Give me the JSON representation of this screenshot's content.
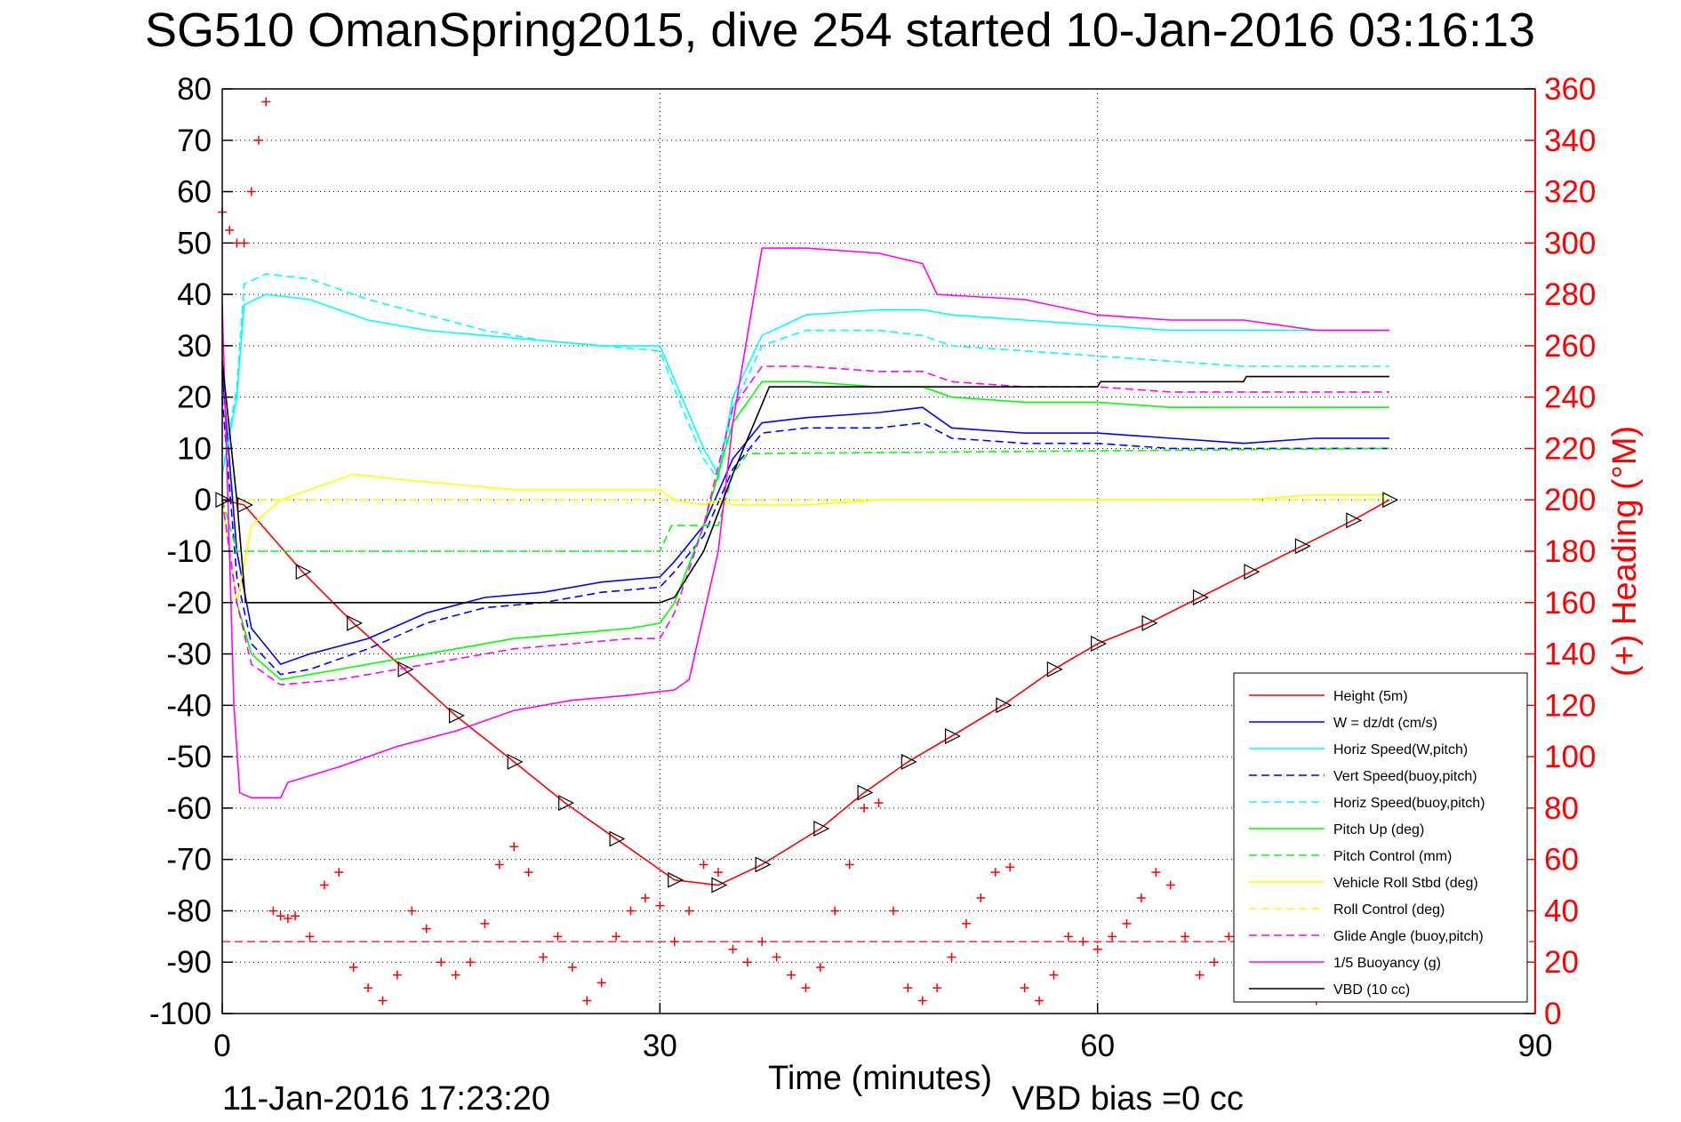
{
  "chart_data": {
    "type": "line",
    "title": "SG510 OmanSpring2015, dive 254 started 10-Jan-2016 03:16:13",
    "xlabel": "Time (minutes)",
    "ylabel_right": "(+) Heading (°M)",
    "xlim": [
      0,
      90
    ],
    "ylim": [
      -100,
      80
    ],
    "ylim_right": [
      0,
      360
    ],
    "xticks": [
      "0",
      "30",
      "60",
      "90"
    ],
    "yticks": [
      "80",
      "70",
      "60",
      "50",
      "40",
      "30",
      "20",
      "10",
      "0",
      "-10",
      "-20",
      "-30",
      "-40",
      "-50",
      "-60",
      "-70",
      "-80",
      "-90",
      "-100"
    ],
    "yticks_right": [
      "360",
      "340",
      "320",
      "300",
      "280",
      "260",
      "240",
      "220",
      "200",
      "180",
      "160",
      "140",
      "120",
      "100",
      "80",
      "60",
      "40",
      "20",
      "0"
    ],
    "grid": true,
    "legend_position": "lower-right",
    "footer_date": "11-Jan-2016 17:23:20",
    "footer_note": "VBD bias =0 cc",
    "colors": {
      "height": "#ff0000",
      "w": "#0000ff",
      "hspeed": "#00ffff",
      "pitch": "#00ff00",
      "roll": "#ffff00",
      "glide": "#ff00ff",
      "buoy": "#ff00ff",
      "vbd": "#000000",
      "heading": "#ff0000",
      "right_axis": "#ff0000"
    },
    "series": [
      {
        "name": "Height (5m)",
        "key": "height",
        "style": "solid",
        "x": [
          0,
          1.5,
          5.5,
          9,
          12.5,
          16,
          20,
          23.5,
          27,
          31,
          34,
          37,
          41,
          44,
          47,
          50,
          53.5,
          57,
          60,
          63.5,
          67,
          70.5,
          74,
          77.5,
          80
        ],
        "y": [
          0,
          -1,
          -14,
          -24,
          -33,
          -42,
          -51,
          -59,
          -66,
          -74,
          -75,
          -71,
          -64,
          -57,
          -51,
          -46,
          -40,
          -33,
          -28,
          -24,
          -19,
          -14,
          -9,
          -4,
          0
        ]
      },
      {
        "name": "W = dz/dt (cm/s)",
        "key": "w",
        "style": "solid",
        "x": [
          0,
          1,
          2,
          4,
          6,
          10,
          14,
          18,
          22,
          26,
          30,
          31,
          33,
          35,
          37,
          40,
          45,
          48,
          50,
          55,
          60,
          65,
          70,
          75,
          80
        ],
        "y": [
          25,
          -10,
          -25,
          -32,
          -30,
          -27,
          -22,
          -19,
          -18,
          -16,
          -15,
          -12,
          -5,
          8,
          15,
          16,
          17,
          18,
          14,
          13,
          13,
          12,
          11,
          12,
          12
        ]
      },
      {
        "name": "Horiz Speed(W,pitch)",
        "key": "hspeed",
        "style": "solid",
        "x": [
          0,
          1,
          1.5,
          3,
          6,
          10,
          14,
          18,
          22,
          26,
          30,
          31.5,
          33,
          34,
          35,
          37,
          40,
          45,
          48,
          50,
          55,
          60,
          65,
          70,
          75,
          80
        ],
        "y": [
          5,
          20,
          38,
          40,
          39,
          35,
          33,
          32,
          31,
          30,
          30,
          20,
          10,
          5,
          20,
          32,
          36,
          37,
          37,
          36,
          35,
          34,
          33,
          33,
          33,
          33
        ]
      },
      {
        "name": "Vert Speed(buoy,pitch)",
        "key": "w",
        "style": "dashed",
        "x": [
          0,
          1,
          2,
          4,
          6,
          10,
          14,
          18,
          22,
          26,
          30,
          31,
          33,
          35,
          37,
          40,
          45,
          48,
          50,
          55,
          60,
          65,
          70,
          75,
          80
        ],
        "y": [
          20,
          -15,
          -28,
          -34,
          -33,
          -29,
          -24,
          -21,
          -20,
          -18,
          -17,
          -14,
          -7,
          6,
          13,
          14,
          14,
          15,
          12,
          11,
          11,
          10,
          10,
          10,
          10
        ]
      },
      {
        "name": "Horiz Speed(buoy,pitch)",
        "key": "hspeed",
        "style": "dashed",
        "x": [
          0,
          1,
          1.5,
          3,
          6,
          10,
          14,
          18,
          22,
          26,
          30,
          31.5,
          33,
          34,
          35,
          37,
          40,
          45,
          48,
          50,
          55,
          60,
          65,
          70,
          75,
          80
        ],
        "y": [
          5,
          22,
          42,
          44,
          43,
          39,
          36,
          33,
          31,
          30,
          29,
          18,
          8,
          4,
          18,
          30,
          33,
          33,
          32,
          30,
          29,
          28,
          27,
          26,
          26,
          26
        ]
      },
      {
        "name": "Pitch Up (deg)",
        "key": "pitch",
        "style": "solid",
        "x": [
          0,
          1,
          2,
          4,
          8,
          12,
          16,
          20,
          24,
          28,
          30,
          31,
          33,
          35,
          37,
          40,
          45,
          48,
          50,
          55,
          60,
          65,
          70,
          75,
          80
        ],
        "y": [
          0,
          -20,
          -30,
          -35,
          -33,
          -31,
          -29,
          -27,
          -26,
          -25,
          -24,
          -20,
          -5,
          15,
          23,
          23,
          22,
          22,
          20,
          19,
          19,
          18,
          18,
          18,
          18
        ]
      },
      {
        "name": "Pitch Control (mm)",
        "key": "pitch",
        "style": "dashed",
        "x": [
          0,
          1,
          2,
          30,
          30.8,
          31,
          34,
          35,
          36,
          80
        ],
        "y": [
          0,
          -10,
          -10,
          -10,
          -5,
          -5,
          -5,
          5,
          9,
          10
        ]
      },
      {
        "name": "Vehicle Roll Stbd (deg)",
        "key": "roll",
        "style": "solid",
        "x": [
          0,
          1,
          2,
          4,
          6,
          7,
          9,
          12,
          16,
          20,
          24,
          28,
          30,
          31,
          33,
          34,
          35,
          40,
          45,
          50,
          55,
          60,
          65,
          70,
          75,
          80
        ],
        "y": [
          0,
          -20,
          -5,
          0,
          2,
          3,
          5,
          4,
          3,
          2,
          2,
          2,
          2,
          0,
          -1,
          0,
          -1,
          -1,
          0,
          0,
          0,
          0,
          0,
          0,
          1,
          1
        ]
      },
      {
        "name": "Roll Control (deg)",
        "key": "roll",
        "style": "dashed",
        "x": [
          0,
          2,
          30,
          31,
          33,
          35,
          80
        ],
        "y": [
          0,
          0,
          0,
          0,
          -1,
          0,
          0
        ]
      },
      {
        "name": "Glide Angle (buoy,pitch)",
        "key": "glide",
        "style": "dashed",
        "x": [
          0,
          1,
          2,
          4,
          8,
          12,
          16,
          20,
          24,
          28,
          30,
          31,
          33,
          35,
          37,
          40,
          45,
          48,
          50,
          55,
          60,
          65,
          70,
          75,
          80
        ],
        "y": [
          0,
          -20,
          -32,
          -36,
          -35,
          -33,
          -31,
          -29,
          -28,
          -27,
          -27,
          -22,
          -5,
          18,
          26,
          26,
          25,
          25,
          23,
          22,
          22,
          21,
          21,
          21,
          21
        ]
      },
      {
        "name": "1/5 Buoyancy (g)",
        "key": "buoy",
        "style": "solid",
        "x": [
          0,
          0.8,
          1.2,
          2,
          4,
          4.5,
          8,
          12,
          16,
          20,
          24,
          28,
          31,
          32,
          34,
          35,
          37,
          40,
          45,
          48,
          49,
          55,
          60,
          65,
          70,
          75,
          80
        ],
        "y": [
          38,
          -40,
          -57,
          -58,
          -58,
          -55,
          -52,
          -48,
          -45,
          -41,
          -39,
          -38,
          -37,
          -35,
          -10,
          15,
          49,
          49,
          48,
          46,
          40,
          39,
          36,
          35,
          35,
          33,
          33
        ]
      },
      {
        "name": "VBD (10 cc)",
        "key": "vbd",
        "style": "solid",
        "x": [
          0,
          1,
          1.6,
          30,
          31,
          33,
          35,
          37.5,
          60,
          60.2,
          70,
          70.2,
          80
        ],
        "y": [
          27,
          0,
          -20,
          -20,
          -19,
          -10,
          5,
          22,
          22,
          23,
          23,
          24,
          24
        ]
      }
    ],
    "heading": {
      "name": "Heading",
      "axis": "right",
      "marker": "+",
      "x": [
        0,
        0.5,
        1,
        1.5,
        2,
        2.5,
        3,
        3.5,
        4,
        4.5,
        5,
        6,
        7,
        8,
        9,
        10,
        11,
        12,
        13,
        14,
        15,
        16,
        17,
        18,
        19,
        20,
        21,
        22,
        23,
        24,
        25,
        26,
        27,
        28,
        29,
        30,
        31,
        32,
        33,
        34,
        35,
        36,
        37,
        38,
        39,
        40,
        41,
        42,
        43,
        44,
        45,
        46,
        47,
        48,
        49,
        50,
        51,
        52,
        53,
        54,
        55,
        56,
        57,
        58,
        59,
        60,
        61,
        62,
        63,
        64,
        65,
        66,
        67,
        68,
        69,
        70,
        71,
        72,
        73,
        74,
        75,
        76,
        77,
        78,
        79,
        80
      ],
      "y": [
        312,
        305,
        300,
        300,
        320,
        340,
        355,
        40,
        38,
        37,
        38,
        30,
        50,
        55,
        18,
        10,
        5,
        15,
        40,
        33,
        20,
        15,
        20,
        35,
        58,
        65,
        55,
        22,
        30,
        18,
        5,
        12,
        30,
        40,
        45,
        42,
        28,
        40,
        58,
        55,
        25,
        20,
        28,
        22,
        15,
        10,
        18,
        40,
        58,
        80,
        82,
        40,
        10,
        5,
        10,
        22,
        35,
        45,
        55,
        57,
        10,
        5,
        15,
        30,
        28,
        25,
        30,
        35,
        45,
        55,
        50,
        30,
        15,
        20,
        30,
        25,
        40,
        45,
        45,
        30,
        5,
        20,
        30,
        35,
        30,
        25
      ]
    },
    "heading_ref": 28
  }
}
